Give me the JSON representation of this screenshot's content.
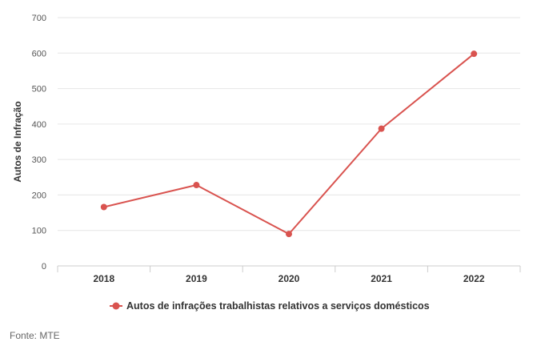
{
  "chart_data": {
    "type": "line",
    "categories": [
      "2018",
      "2019",
      "2020",
      "2021",
      "2022"
    ],
    "series": [
      {
        "name": "Autos de infrações trabalhistas relativos a serviços domésticos",
        "values": [
          166,
          228,
          90,
          387,
          598
        ],
        "color": "#d9534f"
      }
    ],
    "ylabel": "Autos de Infração",
    "xlabel": "",
    "ylim": [
      0,
      700
    ],
    "yticks": [
      "0",
      "100",
      "200",
      "300",
      "400",
      "500",
      "600",
      "700"
    ],
    "grid": true,
    "legend_position": "bottom-center"
  },
  "source": "Fonte: MTE"
}
